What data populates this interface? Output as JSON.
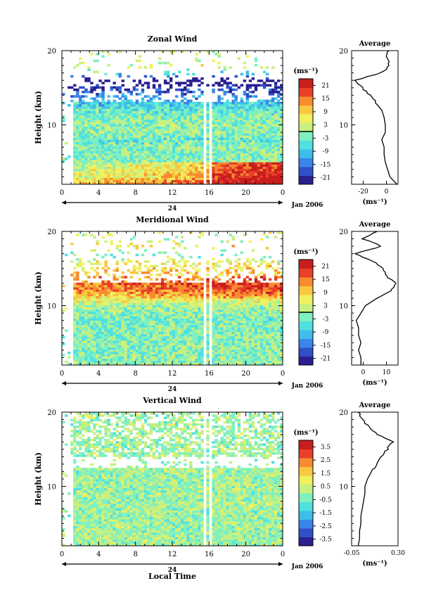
{
  "figure": {
    "date_label": "Jan 2006",
    "xlabel": "Local Time",
    "day_label": "24",
    "ylabel": "Height (km)",
    "units_label": "(ms⁻¹)",
    "average_title": "Average"
  },
  "chart_data": [
    {
      "type": "heatmap",
      "title": "Zonal Wind",
      "x_ticks": [
        "0",
        "4",
        "8",
        "12",
        "16",
        "20",
        "0"
      ],
      "x_range_hours": [
        0,
        24
      ],
      "y_ticks": [
        "10",
        "20"
      ],
      "ylim": [
        2,
        20
      ],
      "colorbar": {
        "ticks": [
          "21",
          "15",
          "9",
          "3",
          "-3",
          "-9",
          "-15",
          "-21"
        ],
        "range": [
          -24,
          24
        ],
        "contour_at": 0
      },
      "data_gap_hours": [
        [
          15.4,
          15.7
        ],
        [
          16.0,
          16.4
        ]
      ],
      "description_profile": "height vs local time, easterlies aloft, westerlies near surface",
      "average_profile": {
        "xlim": [
          -30,
          10
        ],
        "x_ticks": [
          "-20",
          "0"
        ],
        "xlabel": "(ms⁻¹)",
        "height_km": [
          2,
          3,
          4,
          5,
          6,
          7,
          8,
          9,
          10,
          11,
          12,
          13,
          14,
          15,
          16,
          17,
          18,
          19,
          20
        ],
        "values": [
          9,
          3,
          1,
          -1,
          -2,
          -2,
          -4,
          -1,
          -1,
          -2,
          -4,
          -9,
          -14,
          -21,
          -27,
          -5,
          3,
          0,
          2
        ]
      }
    },
    {
      "type": "heatmap",
      "title": "Meridional Wind",
      "x_ticks": [
        "0",
        "4",
        "8",
        "12",
        "16",
        "20",
        "0"
      ],
      "x_range_hours": [
        0,
        24
      ],
      "y_ticks": [
        "10",
        "20"
      ],
      "ylim": [
        2,
        20
      ],
      "colorbar": {
        "ticks": [
          "21",
          "15",
          "9",
          "3",
          "-3",
          "-9",
          "-15",
          "-21"
        ],
        "range": [
          -24,
          24
        ],
        "contour_at": 0
      },
      "data_gap_hours": [
        [
          15.4,
          15.7
        ],
        [
          16.0,
          16.4
        ]
      ],
      "average_profile": {
        "xlim": [
          -5,
          15
        ],
        "x_ticks": [
          "0",
          "10"
        ],
        "xlabel": "(ms⁻¹)",
        "height_km": [
          2,
          3,
          4,
          5,
          6,
          7,
          8,
          9,
          10,
          11,
          12,
          13,
          14,
          15,
          16,
          17,
          18,
          19,
          20
        ],
        "values": [
          -1,
          -1,
          -2,
          -1,
          -2,
          -2,
          -3,
          -1,
          1,
          6,
          12,
          14,
          10,
          9,
          4,
          -4,
          8,
          0,
          6
        ]
      }
    },
    {
      "type": "heatmap",
      "title": "Vertical Wind",
      "x_ticks": [
        "0",
        "4",
        "8",
        "12",
        "16",
        "20",
        "0"
      ],
      "x_range_hours": [
        0,
        24
      ],
      "y_ticks": [
        "10",
        "20"
      ],
      "ylim": [
        2,
        20
      ],
      "colorbar": {
        "ticks": [
          "3.5",
          "2.5",
          "1.5",
          "0.5",
          "-0.5",
          "-1.5",
          "-2.5",
          "-3.5"
        ],
        "range": [
          -4,
          4
        ]
      },
      "data_gap_hours": [
        [
          15.4,
          15.7
        ],
        [
          16.0,
          16.4
        ]
      ],
      "average_profile": {
        "xlim": [
          -0.05,
          0.3
        ],
        "x_ticks": [
          "-0.05",
          "0.30"
        ],
        "xlabel": "(ms⁻¹)",
        "height_km": [
          2,
          3,
          4,
          5,
          6,
          7,
          8,
          9,
          10,
          11,
          12,
          13,
          14,
          15,
          16,
          17,
          18,
          19,
          20
        ],
        "values": [
          0.0,
          0.01,
          0.01,
          0.02,
          0.02,
          0.03,
          0.04,
          0.05,
          0.05,
          0.07,
          0.1,
          0.14,
          0.18,
          0.22,
          0.26,
          0.14,
          0.08,
          0.03,
          0.0
        ]
      }
    }
  ]
}
